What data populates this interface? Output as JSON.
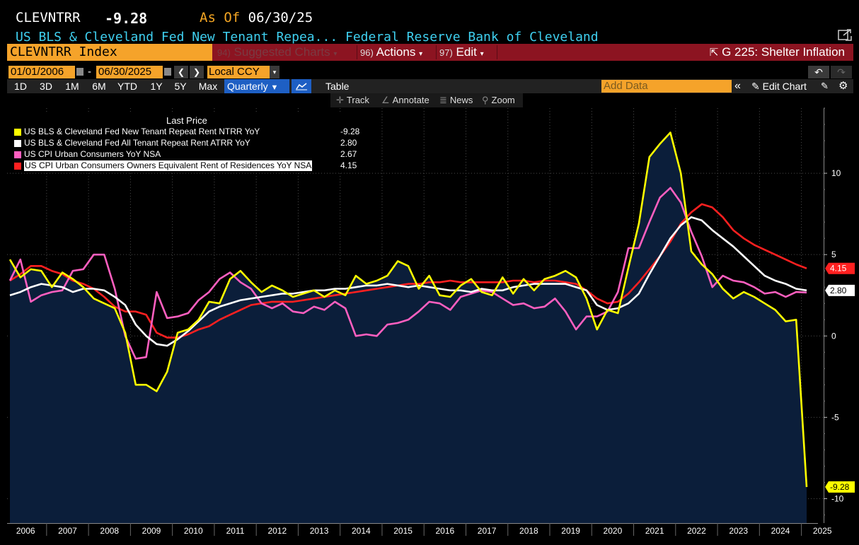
{
  "header": {
    "ticker": "CLEVNTRR",
    "last_value": "-9.28",
    "as_of_label": "As Of",
    "as_of_date": "06/30/25",
    "subtitle": "US BLS & Cleveland Fed New Tenant Repea...  Federal Reserve Bank of Cleveland",
    "popout_icon": "popout-icon"
  },
  "command_bar": {
    "security": "CLEVNTRR Index",
    "suggested": {
      "num": "94)",
      "label": "Suggested Charts"
    },
    "actions": {
      "num": "96)",
      "label": "Actions"
    },
    "edit": {
      "num": "97)",
      "label": "Edit"
    },
    "launch": "G 225: Shelter Inflation",
    "bg_color": "#8c1421"
  },
  "dates": {
    "start": "01/01/2006",
    "end": "06/30/2025",
    "dash": "-",
    "currency": "Local CCY"
  },
  "ranges": [
    "1D",
    "3D",
    "1M",
    "6M",
    "YTD",
    "1Y",
    "5Y",
    "Max"
  ],
  "periodicity": "Quarterly",
  "table_label": "Table",
  "add_data_placeholder": "Add Data",
  "edit_chart_label": "Edit Chart",
  "tools": {
    "track": "Track",
    "annotate": "Annotate",
    "news": "News",
    "zoom": "Zoom"
  },
  "legend": {
    "title": "Last Price",
    "items": [
      {
        "name": "US BLS & Cleveland Fed New Tenant Repeat Rent NTRR YoY",
        "value": "-9.28",
        "color": "#ffff00"
      },
      {
        "name": "US BLS & Cleveland Fed All Tenant Repeat Rent ATRR YoY",
        "value": "2.80",
        "color": "#ffffff"
      },
      {
        "name": "US CPI Urban Consumers YoY NSA",
        "value": "2.67",
        "color": "#ff5fc0"
      },
      {
        "name": "US CPI Urban Consumers Owners Equivalent Rent of Residences YoY NSA",
        "value": "4.15",
        "color": "#ff2020"
      }
    ]
  },
  "chart_data": {
    "type": "line",
    "x_start": "2006Q1",
    "x_end": "2025Q2",
    "periodicity": "quarterly",
    "ylim": [
      -11.5,
      14
    ],
    "yticks": [
      -10,
      -5,
      0,
      5,
      10
    ],
    "xticks": [
      "2006",
      "2007",
      "2008",
      "2009",
      "2010",
      "2011",
      "2012",
      "2013",
      "2014",
      "2015",
      "2016",
      "2017",
      "2018",
      "2019",
      "2020",
      "2021",
      "2022",
      "2023",
      "2024",
      "2025"
    ],
    "grid": true,
    "legend_position": "top-left",
    "value_tags": [
      {
        "value": "4.15",
        "y": 4.15,
        "color": "#ff2020"
      },
      {
        "value": "2.80",
        "y": 2.8,
        "color": "#ffffff"
      },
      {
        "value": "-9.28",
        "y": -9.28,
        "color": "#ffff00"
      }
    ],
    "series": [
      {
        "name": "US BLS & Cleveland Fed New Tenant Repeat Rent NTRR YoY",
        "color": "#ffff00",
        "fill": true,
        "values": [
          4.7,
          3.6,
          4.1,
          4.0,
          3.0,
          3.9,
          3.5,
          3.0,
          2.3,
          2.0,
          1.7,
          0.2,
          -3.0,
          -3.0,
          -3.4,
          -2.2,
          0.2,
          0.4,
          1.0,
          2.1,
          2.0,
          3.5,
          4.0,
          3.3,
          2.7,
          3.1,
          2.8,
          2.4,
          2.6,
          2.8,
          2.4,
          2.8,
          2.5,
          3.7,
          3.2,
          3.4,
          3.7,
          4.6,
          4.3,
          2.9,
          3.7,
          2.5,
          2.4,
          3.1,
          3.5,
          2.7,
          2.5,
          3.6,
          2.6,
          3.5,
          2.8,
          3.5,
          3.7,
          4.0,
          3.6,
          2.3,
          0.4,
          1.6,
          1.4,
          4.2,
          6.9,
          11.0,
          11.8,
          12.5,
          10.0,
          5.2,
          4.4,
          3.8,
          2.9,
          2.3,
          2.7,
          2.4,
          2.0,
          1.6,
          0.9,
          1.0,
          -9.28
        ]
      },
      {
        "name": "US BLS & Cleveland Fed All Tenant Repeat Rent ATRR YoY",
        "color": "#ffffff",
        "values": [
          2.5,
          2.7,
          3.0,
          3.2,
          3.1,
          3.0,
          2.7,
          2.9,
          2.9,
          2.8,
          2.4,
          1.9,
          0.7,
          0.0,
          -0.5,
          -0.6,
          -0.2,
          0.3,
          0.9,
          1.5,
          1.8,
          2.0,
          2.2,
          2.3,
          2.4,
          2.5,
          2.6,
          2.6,
          2.7,
          2.8,
          2.8,
          2.9,
          2.9,
          3.0,
          3.1,
          3.1,
          3.2,
          3.1,
          3.0,
          3.1,
          3.0,
          2.9,
          2.8,
          2.8,
          2.7,
          2.9,
          2.8,
          2.8,
          3.0,
          3.1,
          3.2,
          3.2,
          3.2,
          3.2,
          3.0,
          2.8,
          1.9,
          1.6,
          1.7,
          2.0,
          2.6,
          3.8,
          4.9,
          6.0,
          6.8,
          7.3,
          7.1,
          6.5,
          6.0,
          5.5,
          4.9,
          4.3,
          3.7,
          3.4,
          3.2,
          2.9,
          2.8
        ]
      },
      {
        "name": "US CPI Urban Consumers YoY NSA",
        "color": "#ff5fc0",
        "values": [
          3.4,
          4.7,
          2.1,
          2.5,
          2.7,
          2.8,
          4.0,
          4.1,
          5.0,
          5.0,
          2.9,
          0.0,
          -1.4,
          -1.3,
          2.7,
          1.1,
          1.2,
          1.4,
          2.2,
          2.7,
          3.5,
          3.9,
          3.3,
          2.9,
          2.0,
          1.7,
          2.0,
          1.5,
          1.4,
          1.8,
          1.6,
          2.1,
          1.7,
          0.0,
          0.1,
          0.0,
          0.7,
          0.8,
          1.0,
          1.5,
          2.1,
          2.0,
          1.6,
          2.4,
          2.6,
          2.8,
          2.7,
          2.3,
          1.9,
          2.0,
          1.7,
          1.8,
          2.3,
          1.5,
          0.4,
          1.2,
          1.2,
          1.5,
          2.7,
          5.4,
          5.4,
          7.0,
          8.5,
          9.1,
          8.2,
          6.4,
          4.9,
          3.0,
          3.7,
          3.4,
          3.3,
          3.0,
          2.6,
          2.7,
          2.4,
          2.7,
          2.67
        ]
      },
      {
        "name": "US CPI Urban Consumers Owners Equivalent Rent of Residences YoY NSA",
        "color": "#ff2020",
        "values": [
          3.4,
          3.8,
          4.3,
          4.3,
          4.0,
          3.8,
          3.4,
          3.2,
          2.9,
          2.4,
          1.8,
          1.5,
          1.5,
          1.3,
          0.2,
          -0.1,
          -0.1,
          0.1,
          0.4,
          0.6,
          1.0,
          1.3,
          1.6,
          1.9,
          2.0,
          2.1,
          2.1,
          2.1,
          2.2,
          2.3,
          2.4,
          2.5,
          2.6,
          2.7,
          2.8,
          2.9,
          3.0,
          3.1,
          3.2,
          3.2,
          3.3,
          3.3,
          3.4,
          3.3,
          3.3,
          3.3,
          3.3,
          3.3,
          3.4,
          3.4,
          3.3,
          3.4,
          3.4,
          3.3,
          3.2,
          2.8,
          2.3,
          2.0,
          2.1,
          2.6,
          3.3,
          4.1,
          4.9,
          5.8,
          6.9,
          7.6,
          8.1,
          7.9,
          7.3,
          6.5,
          6.0,
          5.6,
          5.3,
          5.0,
          4.7,
          4.4,
          4.15
        ]
      }
    ]
  }
}
